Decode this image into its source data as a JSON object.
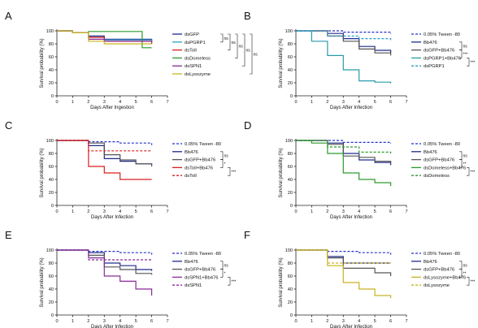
{
  "chart_data": [
    {
      "panel": "A",
      "type": "line",
      "xlabel": "Days After Ingestion",
      "ylabel": "Survival probability (%)",
      "xlim": [
        0,
        7
      ],
      "ylim": [
        0,
        100
      ],
      "xticks": [
        0,
        1,
        2,
        3,
        4,
        5,
        6,
        7
      ],
      "yticks": [
        0,
        20,
        40,
        60,
        80,
        100
      ],
      "legend_position": "right",
      "series": [
        {
          "name": "dsGFP",
          "color": "#1f2a8c",
          "dash": false,
          "x": [
            0,
            1,
            2,
            3,
            6
          ],
          "y": [
            100,
            97,
            92,
            87,
            84
          ]
        },
        {
          "name": "dsPGRP1",
          "color": "#2b9cc8",
          "dash": false,
          "x": [
            0,
            1,
            2,
            3,
            6
          ],
          "y": [
            100,
            97,
            90,
            86,
            82
          ]
        },
        {
          "name": "dsToll",
          "color": "#d81e1e",
          "dash": false,
          "x": [
            0,
            1,
            2,
            3,
            6
          ],
          "y": [
            100,
            97,
            90,
            84,
            80
          ]
        },
        {
          "name": "dsDomeless",
          "color": "#2c9a2c",
          "dash": false,
          "x": [
            0,
            1,
            2,
            5.4,
            6
          ],
          "y": [
            100,
            97,
            99,
            74,
            74
          ]
        },
        {
          "name": "dsSPN1",
          "color": "#8a2a99",
          "dash": false,
          "x": [
            0,
            1,
            2,
            3,
            6
          ],
          "y": [
            100,
            97,
            87,
            84,
            82
          ]
        },
        {
          "name": "dsLysozyme",
          "color": "#c9b320",
          "dash": false,
          "x": [
            0,
            1,
            2,
            3,
            6
          ],
          "y": [
            100,
            97,
            84,
            80,
            80
          ]
        }
      ],
      "significance": [
        {
          "from": 0,
          "to": 1,
          "label": "ns",
          "level": 0
        },
        {
          "from": 0,
          "to": 2,
          "label": "ns",
          "level": 1
        },
        {
          "from": 0,
          "to": 3,
          "label": "ns",
          "level": 2
        },
        {
          "from": 0,
          "to": 4,
          "label": "ns",
          "level": 3
        },
        {
          "from": 0,
          "to": 5,
          "label": "ns",
          "level": 4
        }
      ]
    },
    {
      "panel": "B",
      "type": "line",
      "xlabel": "Days After Infection",
      "ylabel": "Survival probability (%)",
      "xlim": [
        0,
        7
      ],
      "ylim": [
        0,
        100
      ],
      "xticks": [
        0,
        1,
        2,
        3,
        4,
        5,
        6,
        7
      ],
      "yticks": [
        0,
        20,
        40,
        60,
        80,
        100
      ],
      "legend_position": "right",
      "series": [
        {
          "name": "0.05% Tween -80",
          "color": "#2530c8",
          "dash": true,
          "x": [
            0,
            3,
            6
          ],
          "y": [
            100,
            98,
            95
          ]
        },
        {
          "name": "Bb476",
          "color": "#1f2a8c",
          "dash": false,
          "x": [
            0,
            2,
            3,
            4,
            5,
            6
          ],
          "y": [
            100,
            96,
            88,
            76,
            70,
            66
          ]
        },
        {
          "name": "dsGFP+Bb476",
          "color": "#555555",
          "dash": false,
          "x": [
            0,
            2,
            3,
            4,
            5,
            6
          ],
          "y": [
            100,
            92,
            84,
            72,
            66,
            62
          ]
        },
        {
          "name": "dsPGRP1+Bb476",
          "color": "#2a9bab",
          "dash": false,
          "x": [
            0,
            1,
            2,
            3,
            4,
            5,
            6
          ],
          "y": [
            100,
            84,
            62,
            40,
            23,
            21,
            19
          ]
        },
        {
          "name": "dsPGRP1",
          "color": "#2b9cc8",
          "dash": true,
          "x": [
            0,
            2,
            4,
            6
          ],
          "y": [
            100,
            92,
            88,
            85
          ]
        }
      ],
      "significance": [
        {
          "from": 1,
          "to": 2,
          "label": "ns",
          "level": 0
        },
        {
          "from": 2,
          "to": 3,
          "label": "***",
          "level": 0
        },
        {
          "from": 3,
          "to": 4,
          "label": "***",
          "level": 1
        }
      ]
    },
    {
      "panel": "C",
      "type": "line",
      "xlabel": "Days After Infection",
      "ylabel": "Survival probability (%)",
      "xlim": [
        0,
        7
      ],
      "ylim": [
        0,
        100
      ],
      "xticks": [
        0,
        1,
        2,
        3,
        4,
        5,
        6,
        7
      ],
      "yticks": [
        0,
        20,
        40,
        60,
        80,
        100
      ],
      "legend_position": "right",
      "series": [
        {
          "name": "0.05% Tween -80",
          "color": "#2530c8",
          "dash": true,
          "x": [
            0,
            2,
            4,
            6
          ],
          "y": [
            100,
            98,
            96,
            93
          ]
        },
        {
          "name": "Bb476",
          "color": "#1f2a8c",
          "dash": false,
          "x": [
            0,
            2,
            3,
            4,
            5,
            6
          ],
          "y": [
            100,
            92,
            72,
            68,
            64,
            62
          ]
        },
        {
          "name": "dsGFP+Bb476",
          "color": "#555555",
          "dash": false,
          "x": [
            0,
            2,
            3,
            4,
            5,
            6
          ],
          "y": [
            100,
            96,
            78,
            70,
            64,
            60
          ]
        },
        {
          "name": "dsToll+Bb476",
          "color": "#d81e1e",
          "dash": false,
          "x": [
            0,
            2,
            3,
            4,
            6
          ],
          "y": [
            100,
            60,
            50,
            40,
            40
          ]
        },
        {
          "name": "dsToll",
          "color": "#d81e1e",
          "dash": true,
          "x": [
            0,
            2,
            6
          ],
          "y": [
            100,
            84,
            84
          ]
        }
      ],
      "significance": [
        {
          "from": 1,
          "to": 2,
          "label": "ns",
          "level": 0
        },
        {
          "from": 2,
          "to": 3,
          "label": "*",
          "level": 0
        },
        {
          "from": 3,
          "to": 4,
          "label": "***",
          "level": 1
        }
      ]
    },
    {
      "panel": "D",
      "type": "line",
      "xlabel": "Days After Infection",
      "ylabel": "Survival probability (%)",
      "xlim": [
        0,
        7
      ],
      "ylim": [
        0,
        100
      ],
      "xticks": [
        0,
        1,
        2,
        3,
        4,
        5,
        6,
        7
      ],
      "yticks": [
        0,
        20,
        40,
        60,
        80,
        100
      ],
      "legend_position": "right",
      "series": [
        {
          "name": "0.05% Tween -80",
          "color": "#2530c8",
          "dash": true,
          "x": [
            0,
            3,
            6
          ],
          "y": [
            100,
            97,
            95
          ]
        },
        {
          "name": "Bb476",
          "color": "#1f2a8c",
          "dash": false,
          "x": [
            0,
            2,
            3,
            4,
            5,
            6
          ],
          "y": [
            100,
            96,
            80,
            70,
            66,
            62
          ]
        },
        {
          "name": "dsGFP+Bb476",
          "color": "#555555",
          "dash": false,
          "x": [
            0,
            2,
            3,
            4,
            5,
            6
          ],
          "y": [
            100,
            94,
            76,
            74,
            68,
            65
          ]
        },
        {
          "name": "dsDomeless+Bb476",
          "color": "#2c9a2c",
          "dash": false,
          "x": [
            0,
            1,
            2,
            3,
            4,
            5,
            6
          ],
          "y": [
            100,
            96,
            80,
            50,
            40,
            35,
            30
          ]
        },
        {
          "name": "dsDomeless",
          "color": "#2c9a2c",
          "dash": true,
          "x": [
            0,
            2,
            4,
            6
          ],
          "y": [
            100,
            90,
            82,
            80
          ]
        }
      ],
      "significance": [
        {
          "from": 1,
          "to": 2,
          "label": "ns",
          "level": 0
        },
        {
          "from": 2,
          "to": 3,
          "label": "**",
          "level": 0
        },
        {
          "from": 3,
          "to": 4,
          "label": "***",
          "level": 1
        }
      ]
    },
    {
      "panel": "E",
      "type": "line",
      "xlabel": "Days After Infection",
      "ylabel": "Survival probability (%)",
      "xlim": [
        0,
        7
      ],
      "ylim": [
        0,
        100
      ],
      "xticks": [
        0,
        1,
        2,
        3,
        4,
        5,
        6,
        7
      ],
      "yticks": [
        0,
        20,
        40,
        60,
        80,
        100
      ],
      "legend_position": "right",
      "series": [
        {
          "name": "0.05% Tween -80",
          "color": "#2530c8",
          "dash": true,
          "x": [
            0,
            2,
            4,
            6
          ],
          "y": [
            100,
            98,
            96,
            93
          ]
        },
        {
          "name": "Bb476",
          "color": "#1f2a8c",
          "dash": false,
          "x": [
            0,
            2,
            3,
            4,
            5,
            6
          ],
          "y": [
            100,
            96,
            80,
            76,
            70,
            68
          ]
        },
        {
          "name": "dsGFP+Bb476",
          "color": "#555555",
          "dash": false,
          "x": [
            0,
            2,
            3,
            4,
            5,
            6
          ],
          "y": [
            100,
            92,
            74,
            70,
            64,
            62
          ]
        },
        {
          "name": "dsSPN1+Bb476",
          "color": "#8a2a99",
          "dash": false,
          "x": [
            0,
            2,
            3,
            4,
            5,
            6
          ],
          "y": [
            100,
            88,
            60,
            52,
            40,
            30
          ]
        },
        {
          "name": "dsSPN1",
          "color": "#8a2a99",
          "dash": true,
          "x": [
            0,
            2,
            6
          ],
          "y": [
            100,
            85,
            84
          ]
        }
      ],
      "significance": [
        {
          "from": 1,
          "to": 2,
          "label": "ns",
          "level": 0
        },
        {
          "from": 2,
          "to": 3,
          "label": "*",
          "level": 0
        },
        {
          "from": 3,
          "to": 4,
          "label": "***",
          "level": 1
        }
      ]
    },
    {
      "panel": "F",
      "type": "line",
      "xlabel": "Days After Infection",
      "ylabel": "Survival probability (%)",
      "xlim": [
        0,
        7
      ],
      "ylim": [
        0,
        100
      ],
      "xticks": [
        0,
        1,
        2,
        3,
        4,
        5,
        6,
        7
      ],
      "yticks": [
        0,
        20,
        40,
        60,
        80,
        100
      ],
      "legend_position": "right",
      "series": [
        {
          "name": "0.05% Tween -80",
          "color": "#2530c8",
          "dash": true,
          "x": [
            0,
            2,
            4,
            6
          ],
          "y": [
            100,
            98,
            96,
            93
          ]
        },
        {
          "name": "Bb476",
          "color": "#1f2a8c",
          "dash": false,
          "x": [
            0,
            2,
            3,
            6
          ],
          "y": [
            100,
            90,
            80,
            80
          ]
        },
        {
          "name": "dsGFP+Bb476",
          "color": "#555555",
          "dash": false,
          "x": [
            0,
            2,
            3,
            5,
            6
          ],
          "y": [
            100,
            88,
            72,
            65,
            60
          ]
        },
        {
          "name": "dsLysozyme+Bb476",
          "color": "#c9b320",
          "dash": false,
          "x": [
            0,
            2,
            3,
            4,
            5,
            6
          ],
          "y": [
            100,
            76,
            50,
            40,
            30,
            26
          ]
        },
        {
          "name": "dsLysozyme",
          "color": "#c9b320",
          "dash": true,
          "x": [
            0,
            2,
            6
          ],
          "y": [
            100,
            80,
            80
          ]
        }
      ],
      "significance": [
        {
          "from": 1,
          "to": 2,
          "label": "ns",
          "level": 0
        },
        {
          "from": 2,
          "to": 3,
          "label": "**",
          "level": 0
        },
        {
          "from": 3,
          "to": 4,
          "label": "***",
          "level": 1
        }
      ]
    }
  ]
}
